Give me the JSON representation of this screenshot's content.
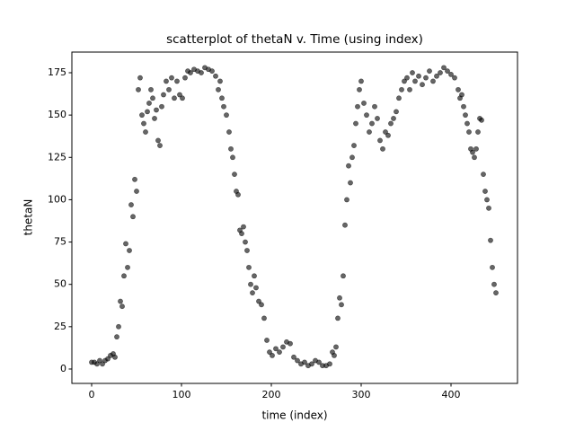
{
  "chart_data": {
    "type": "scatter",
    "title": "scatterplot of thetaN v. Time (using index)",
    "xlabel": "time (index)",
    "ylabel": "thetaN",
    "x": [
      0,
      3,
      6,
      9,
      12,
      15,
      18,
      21,
      24,
      26,
      28,
      30,
      32,
      34,
      36,
      38,
      40,
      42,
      44,
      46,
      48,
      50,
      52,
      54,
      56,
      58,
      60,
      62,
      64,
      66,
      68,
      70,
      72,
      74,
      76,
      78,
      80,
      83,
      86,
      89,
      92,
      95,
      98,
      101,
      104,
      107,
      110,
      114,
      118,
      122,
      126,
      130,
      134,
      138,
      141,
      143,
      145,
      147,
      150,
      153,
      155,
      157,
      159,
      161,
      163,
      165,
      167,
      169,
      171,
      173,
      175,
      177,
      179,
      181,
      183,
      186,
      189,
      192,
      195,
      198,
      201,
      205,
      209,
      213,
      217,
      221,
      225,
      229,
      233,
      237,
      241,
      245,
      249,
      253,
      257,
      261,
      265,
      268,
      270,
      272,
      274,
      276,
      278,
      280,
      282,
      284,
      286,
      288,
      290,
      292,
      294,
      296,
      298,
      300,
      303,
      306,
      309,
      312,
      315,
      318,
      321,
      324,
      327,
      330,
      333,
      336,
      339,
      342,
      345,
      348,
      351,
      354,
      357,
      360,
      364,
      368,
      372,
      376,
      380,
      384,
      388,
      392,
      396,
      400,
      404,
      408,
      410,
      412,
      414,
      416,
      418,
      420,
      422,
      424,
      426,
      428,
      430,
      432,
      434,
      436,
      438,
      440,
      442,
      444,
      446,
      448,
      450
    ],
    "values": [
      4,
      4,
      3,
      5,
      3,
      5,
      6,
      8,
      9,
      7,
      19,
      25,
      40,
      37,
      55,
      74,
      60,
      70,
      97,
      90,
      112,
      105,
      165,
      172,
      150,
      145,
      140,
      152,
      157,
      165,
      160,
      148,
      153,
      135,
      132,
      155,
      162,
      170,
      165,
      172,
      160,
      170,
      162,
      160,
      172,
      176,
      175,
      177,
      176,
      175,
      178,
      177,
      176,
      173,
      165,
      170,
      160,
      155,
      150,
      140,
      130,
      125,
      115,
      105,
      103,
      82,
      80,
      84,
      75,
      70,
      60,
      50,
      45,
      55,
      48,
      40,
      38,
      30,
      17,
      10,
      8,
      12,
      10,
      13,
      16,
      15,
      7,
      5,
      3,
      4,
      2,
      3,
      5,
      4,
      2,
      2,
      3,
      10,
      8,
      13,
      30,
      42,
      38,
      55,
      85,
      100,
      120,
      110,
      125,
      132,
      145,
      155,
      165,
      170,
      157,
      150,
      140,
      145,
      155,
      148,
      135,
      130,
      140,
      138,
      145,
      148,
      152,
      160,
      165,
      170,
      172,
      165,
      175,
      170,
      173,
      168,
      172,
      176,
      170,
      173,
      175,
      178,
      176,
      174,
      172,
      165,
      160,
      162,
      155,
      150,
      145,
      140,
      130,
      128,
      125,
      130,
      140,
      148,
      147,
      115,
      105,
      100,
      95,
      76,
      60,
      50,
      45
    ],
    "color": "#000000",
    "opacity": 0.6,
    "xlim": [
      -22,
      474
    ],
    "ylim": [
      -8.5,
      187.2
    ],
    "xticks": [
      0,
      100,
      200,
      300,
      400
    ],
    "yticks": [
      0,
      25,
      50,
      75,
      100,
      125,
      150,
      175
    ]
  }
}
